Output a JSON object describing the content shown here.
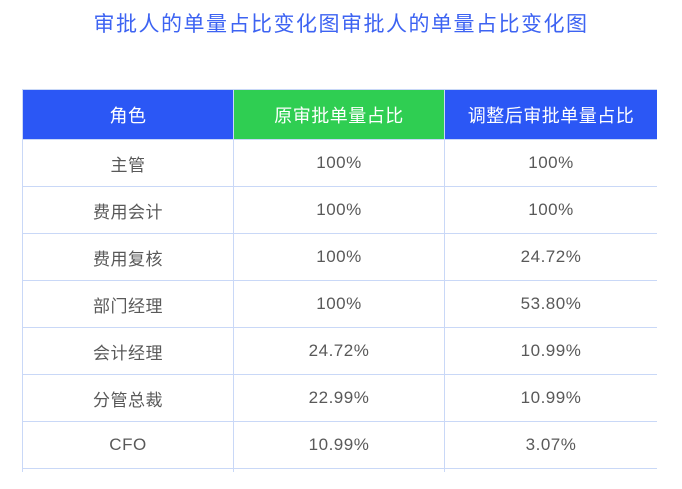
{
  "title": "审批人的单量占比变化图审批人的单量占比变化图",
  "colors": {
    "title_text": "#3D63F2",
    "header_blue": "#2B57F5",
    "header_green": "#2FCE52",
    "header_text": "#FFFFFF",
    "cell_text": "#595959",
    "grid_border": "#C9D8F7",
    "background": "#FFFFFF"
  },
  "table": {
    "header_colors": [
      "#2B57F5",
      "#2FCE52",
      "#2B57F5"
    ]
  },
  "chart_data": {
    "type": "table",
    "title": "审批人的单量占比变化图审批人的单量占比变化图",
    "columns": [
      "角色",
      "原审批单量占比",
      "调整后审批单量占比"
    ],
    "rows": [
      [
        "主管",
        "100%",
        "100%"
      ],
      [
        "费用会计",
        "100%",
        "100%"
      ],
      [
        "费用复核",
        "100%",
        "24.72%"
      ],
      [
        "部门经理",
        "100%",
        "53.80%"
      ],
      [
        "会计经理",
        "24.72%",
        "10.99%"
      ],
      [
        "分管总裁",
        "22.99%",
        "10.99%"
      ],
      [
        "CFO",
        "10.99%",
        "3.07%"
      ]
    ],
    "layout": {
      "legend": "none",
      "grid": "on",
      "column_alignment": "center"
    }
  }
}
